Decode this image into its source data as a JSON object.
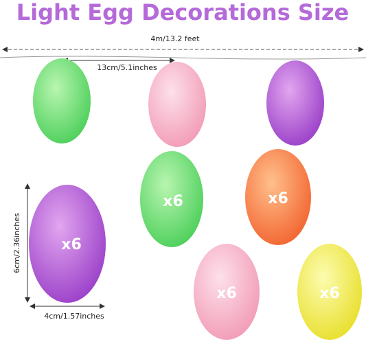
{
  "title": "Light Egg Decorations Size",
  "dimensions": {
    "length": "4m/13.2 feet",
    "spacing": "13cm/5.1inches",
    "height": "6cm/2.36inches",
    "width": "4cm/1.57inches"
  },
  "eggs": [
    {
      "label": "x6"
    },
    {
      "label": "x6"
    },
    {
      "label": "x6"
    },
    {
      "label": "x6"
    },
    {
      "label": "x6"
    }
  ]
}
